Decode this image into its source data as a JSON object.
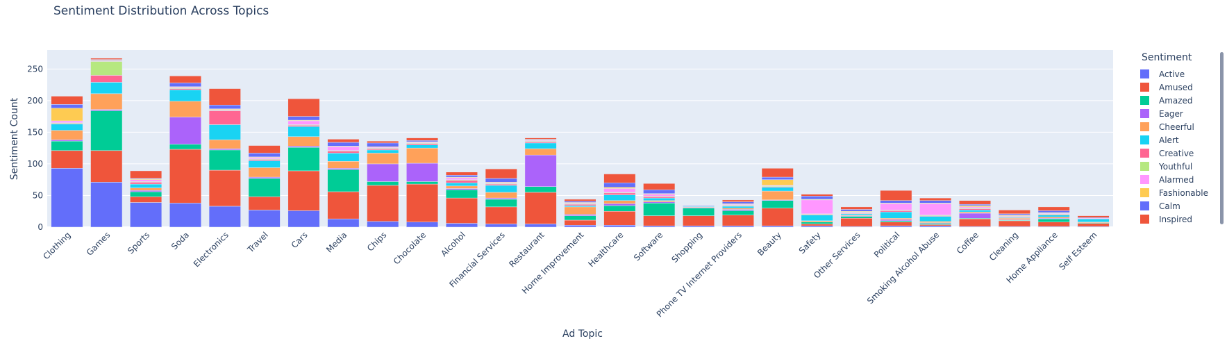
{
  "chart_data": {
    "type": "bar",
    "stacked": true,
    "title": "Sentiment Distribution Across Topics",
    "xlabel": "Ad Topic",
    "ylabel": "Sentiment Count",
    "ylim": [
      0,
      280
    ],
    "yticks": [
      0,
      50,
      100,
      150,
      200,
      250
    ],
    "grid": true,
    "legend_title": "Sentiment",
    "legend_position": "right",
    "categories": [
      "Clothing",
      "Games",
      "Sports",
      "Soda",
      "Electronics",
      "Travel",
      "Cars",
      "Media",
      "Chips",
      "Chocolate",
      "Alcohol",
      "Financial Services",
      "Restaurant",
      "Home Improvement",
      "Healthcare",
      "Software",
      "Shopping",
      "Phone TV Internet Providers",
      "Beauty",
      "Safety",
      "Other Services",
      "Political",
      "Smoking Alcohol Abuse",
      "Coffee",
      "Cleaning",
      "Home Appliance",
      "Self Esteem"
    ],
    "series": [
      {
        "name": "Active",
        "color": "#636efa",
        "values": [
          93,
          71,
          39,
          38,
          33,
          27,
          26,
          13,
          9,
          8,
          6,
          5,
          5,
          3,
          3,
          2,
          2,
          2,
          2,
          2,
          1,
          2,
          2,
          1,
          1,
          1,
          1
        ]
      },
      {
        "name": "Amused",
        "color": "#ef553b",
        "values": [
          28,
          50,
          9,
          85,
          57,
          21,
          63,
          43,
          57,
          60,
          40,
          27,
          50,
          8,
          22,
          16,
          16,
          17,
          28,
          3,
          13,
          6,
          2,
          12,
          9,
          7,
          5
        ]
      },
      {
        "name": "Amazed",
        "color": "#00cc96",
        "values": [
          15,
          63,
          8,
          8,
          32,
          29,
          37,
          35,
          6,
          4,
          13,
          12,
          9,
          7,
          9,
          20,
          12,
          7,
          12,
          3,
          3,
          2,
          2,
          1,
          1,
          5,
          1
        ]
      },
      {
        "name": "Eager",
        "color": "#ab63fa",
        "values": [
          2,
          2,
          2,
          43,
          2,
          2,
          2,
          2,
          28,
          29,
          2,
          2,
          50,
          2,
          3,
          2,
          1,
          2,
          1,
          0,
          1,
          2,
          1,
          8,
          1,
          1,
          0
        ]
      },
      {
        "name": "Cheerful",
        "color": "#ffa15a",
        "values": [
          15,
          25,
          4,
          25,
          14,
          15,
          15,
          11,
          17,
          24,
          4,
          9,
          10,
          12,
          5,
          2,
          1,
          2,
          14,
          2,
          1,
          2,
          2,
          2,
          2,
          2,
          1
        ]
      },
      {
        "name": "Alert",
        "color": "#19d3f3",
        "values": [
          10,
          18,
          6,
          18,
          24,
          11,
          16,
          13,
          5,
          5,
          5,
          11,
          9,
          2,
          9,
          4,
          1,
          3,
          6,
          9,
          2,
          10,
          8,
          3,
          1,
          3,
          5
        ]
      },
      {
        "name": "Creative",
        "color": "#ff6692",
        "values": [
          1,
          11,
          3,
          2,
          22,
          2,
          2,
          3,
          2,
          2,
          4,
          2,
          2,
          2,
          3,
          2,
          0,
          1,
          1,
          1,
          1,
          2,
          1,
          2,
          1,
          1,
          0
        ]
      },
      {
        "name": "Youthful",
        "color": "#b6e880",
        "values": [
          1,
          22,
          1,
          1,
          1,
          1,
          1,
          1,
          1,
          1,
          1,
          1,
          1,
          1,
          1,
          1,
          0,
          1,
          1,
          1,
          1,
          1,
          1,
          1,
          1,
          1,
          0
        ]
      },
      {
        "name": "Alarmed",
        "color": "#ff97ff",
        "values": [
          3,
          1,
          3,
          1,
          1,
          2,
          6,
          6,
          1,
          1,
          3,
          1,
          1,
          1,
          6,
          3,
          0,
          1,
          1,
          22,
          1,
          10,
          18,
          2,
          1,
          1,
          1
        ]
      },
      {
        "name": "Fashionable",
        "color": "#fecb52",
        "values": [
          20,
          1,
          1,
          1,
          1,
          1,
          1,
          1,
          1,
          1,
          1,
          1,
          1,
          1,
          2,
          1,
          0,
          1,
          9,
          1,
          1,
          1,
          1,
          2,
          1,
          1,
          0
        ]
      },
      {
        "name": "Calm",
        "color": "#636efa",
        "values": [
          6,
          1,
          1,
          6,
          6,
          6,
          6,
          6,
          6,
          2,
          3,
          6,
          1,
          2,
          7,
          6,
          1,
          3,
          4,
          5,
          3,
          4,
          4,
          2,
          2,
          3,
          1
        ]
      },
      {
        "name": "Inspired",
        "color": "#ef553b",
        "values": [
          13,
          2,
          12,
          11,
          26,
          12,
          28,
          5,
          3,
          4,
          5,
          15,
          2,
          3,
          14,
          10,
          0,
          3,
          14,
          3,
          4,
          16,
          4,
          6,
          6,
          6,
          3
        ]
      }
    ]
  }
}
